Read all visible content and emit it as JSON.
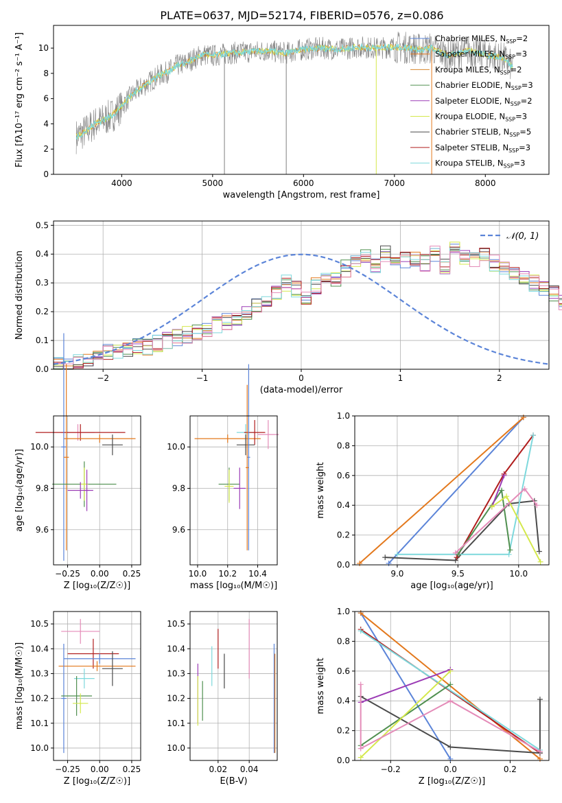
{
  "colors": {
    "c1": "#5b84d8",
    "c2": "#e3781c",
    "c3": "#d7852a",
    "c4": "#4f8f4f",
    "c5": "#9b3bb5",
    "c6": "#d4e84b",
    "c7": "#4a4a4a",
    "c8": "#b01d1d",
    "c9": "#7dd8dc",
    "gray": "#7f7f7f",
    "pink": "#e48bb8",
    "olive": "#a8c050",
    "grid": "#b0b0b0"
  },
  "legend_entries": [
    {
      "text": "Chabrier MILES, N",
      "sub": "SSP",
      "tail": "=2",
      "color": "#5b84d8"
    },
    {
      "text": "Salpeter MILES, N",
      "sub": "SSP",
      "tail": "=3",
      "color": "#e3781c"
    },
    {
      "text": "Kroupa MILES, N",
      "sub": "SSP",
      "tail": "=2",
      "color": "#d7852a"
    },
    {
      "text": "Chabrier ELODIE, N",
      "sub": "SSP",
      "tail": "=3",
      "color": "#4f8f4f"
    },
    {
      "text": "Salpeter ELODIE, N",
      "sub": "SSP",
      "tail": "=2",
      "color": "#9b3bb5"
    },
    {
      "text": "Kroupa ELODIE, N",
      "sub": "SSP",
      "tail": "=3",
      "color": "#d4e84b"
    },
    {
      "text": "Chabrier STELIB, N",
      "sub": "SSP",
      "tail": "=5",
      "color": "#4a4a4a"
    },
    {
      "text": "Salpeter STELIB, N",
      "sub": "SSP",
      "tail": "=3",
      "color": "#b01d1d"
    },
    {
      "text": "Kroupa STELIB, N",
      "sub": "SSP",
      "tail": "=3",
      "color": "#7dd8dc"
    }
  ],
  "chart_data": [
    {
      "id": "spectrum",
      "type": "line",
      "title": "PLATE=0637, MJD=52174, FIBERID=0576, z=0.086",
      "xlabel": "wavelength [Angstrom, rest frame]",
      "ylabel": "Flux [fλ10⁻¹⁷ erg cm⁻² s⁻¹ A⁻¹]",
      "xlim": [
        3250,
        8700
      ],
      "ylim": [
        0,
        11.8
      ],
      "xticks": [
        "4000",
        "5000",
        "6000",
        "7000",
        "8000"
      ],
      "yticks": [
        "0",
        "2",
        "4",
        "6",
        "8",
        "10"
      ],
      "continuum_x": [
        3500,
        3600,
        3700,
        3800,
        3900,
        4000,
        4100,
        4200,
        4300,
        4400,
        4500,
        4600,
        4700,
        4800,
        4900,
        5000,
        5200,
        5400,
        5600,
        5800,
        6000,
        6200,
        6400,
        6600,
        6800,
        7000,
        7200,
        7300,
        7400,
        7600,
        7800,
        8000,
        8200,
        8300
      ],
      "continuum_y": [
        3.0,
        3.4,
        4.0,
        4.3,
        4.7,
        5.4,
        6.2,
        6.8,
        7.3,
        7.8,
        8.1,
        8.6,
        8.8,
        9.2,
        9.5,
        9.4,
        9.6,
        9.7,
        9.8,
        9.6,
        9.9,
        10.0,
        9.9,
        10.1,
        10.0,
        10.1,
        10.0,
        9.9,
        10.0,
        9.4,
        9.8,
        9.5,
        9.2,
        8.5
      ],
      "spikes_x": [
        5130,
        5810,
        6800,
        7410
      ],
      "spikes_y": [
        0,
        0,
        0,
        0
      ],
      "legend": "upper right"
    },
    {
      "id": "residuals",
      "type": "histogram",
      "xlabel": "(data-model)/error",
      "ylabel": "Normed distribution",
      "xlim": [
        -2.5,
        2.5
      ],
      "ylim": [
        0,
        0.515
      ],
      "xticks": [
        "−2",
        "−1",
        "0",
        "1",
        "2"
      ],
      "yticks": [
        "0.0",
        "0.1",
        "0.2",
        "0.3",
        "0.4",
        "0.5"
      ],
      "bin_width": 0.1,
      "series_mean": [
        0.015,
        0.025,
        0.03,
        0.04,
        0.05,
        0.06,
        0.065,
        0.07,
        0.08,
        0.075,
        0.09,
        0.1,
        0.11,
        0.12,
        0.125,
        0.14,
        0.155,
        0.165,
        0.18,
        0.2,
        0.225,
        0.245,
        0.26,
        0.3,
        0.28,
        0.25,
        0.29,
        0.33,
        0.31,
        0.35,
        0.38,
        0.4,
        0.36,
        0.4,
        0.39,
        0.38,
        0.38,
        0.37,
        0.4,
        0.36,
        0.43,
        0.39,
        0.38,
        0.4,
        0.37,
        0.35,
        0.33,
        0.32,
        0.3,
        0.28,
        0.26,
        0.23,
        0.22,
        0.19,
        0.18,
        0.17,
        0.15,
        0.14,
        0.12,
        0.11,
        0.1,
        0.09,
        0.08,
        0.07,
        0.065,
        0.06,
        0.05,
        0.05,
        0.045,
        0.04
      ],
      "gaussian_label": "𝒩(0, 1)",
      "legend": "upper right"
    },
    {
      "id": "age_vs_Z",
      "type": "errorbar",
      "xlabel": "Z [log₁₀(Z/Z☉)]",
      "ylabel": "age  [log₁₀(age/yr)]",
      "xlim": [
        -0.36,
        0.32
      ],
      "ylim": [
        9.43,
        10.15
      ],
      "xticks": [
        -0.25,
        0.0,
        0.25
      ],
      "xtick_labels": [
        "−0.25",
        "0.00",
        "0.25"
      ],
      "yticks": [
        9.6,
        9.8,
        10.0
      ],
      "ytick_labels": [
        "9.6",
        "9.8",
        "10.0"
      ],
      "points": [
        {
          "x": -0.17,
          "y": 10.07,
          "xerr": 0.13,
          "yerr": 0.04,
          "c": "#e48bb8"
        },
        {
          "x": -0.15,
          "y": 10.07,
          "xerr": 0.35,
          "yerr": 0.04,
          "c": "#b01d1d"
        },
        {
          "x": 0.0,
          "y": 10.04,
          "xerr": 0.28,
          "yerr": 0.02,
          "c": "#e3781c"
        },
        {
          "x": 0.1,
          "y": 10.01,
          "xerr": 0.08,
          "yerr": 0.05,
          "c": "#4a4a4a"
        },
        {
          "x": -0.28,
          "y": 10.0,
          "xerr": 0.02,
          "yerr": 0.55,
          "c": "#5b84d8"
        },
        {
          "x": -0.26,
          "y": 9.95,
          "xerr": 0.02,
          "yerr": 0.45,
          "c": "#e3781c"
        },
        {
          "x": -0.12,
          "y": 9.82,
          "xerr": 0.25,
          "yerr": 0.11,
          "c": "#4f8f4f"
        },
        {
          "x": -0.12,
          "y": 9.82,
          "xerr": 0.03,
          "yerr": 0.08,
          "c": "#d4e84b"
        },
        {
          "x": -0.15,
          "y": 9.79,
          "xerr": 0.1,
          "yerr": 0.04,
          "c": "#9b3bb5"
        },
        {
          "x": -0.1,
          "y": 9.79,
          "xerr": 0.02,
          "yerr": 0.1,
          "c": "#9b3bb5"
        }
      ]
    },
    {
      "id": "age_vs_mass",
      "type": "errorbar",
      "xlabel": "mass [log₁₀(M/M☉)]",
      "ylabel": "",
      "xlim": [
        9.95,
        10.53
      ],
      "ylim": [
        9.43,
        10.15
      ],
      "xticks": [
        10.0,
        10.2,
        10.4
      ],
      "xtick_labels": [
        "10.0",
        "10.2",
        "10.4"
      ],
      "yticks": [
        9.6,
        9.8,
        10.0
      ],
      "ytick_labels": [
        "9.6",
        "9.8",
        "10.0"
      ],
      "points": [
        {
          "x": 10.2,
          "y": 10.04,
          "xerr": 0.22,
          "yerr": 0.02,
          "c": "#e3781c"
        },
        {
          "x": 10.32,
          "y": 10.07,
          "xerr": 0.06,
          "yerr": 0.04,
          "c": "#7dd8dc"
        },
        {
          "x": 10.38,
          "y": 10.07,
          "xerr": 0.07,
          "yerr": 0.06,
          "c": "#b01d1d"
        },
        {
          "x": 10.47,
          "y": 10.06,
          "xerr": 0.07,
          "yerr": 0.07,
          "c": "#e48bb8"
        },
        {
          "x": 10.32,
          "y": 10.01,
          "xerr": 0.06,
          "yerr": 0.05,
          "c": "#4a4a4a"
        },
        {
          "x": 10.34,
          "y": 9.95,
          "xerr": 0.01,
          "yerr": 0.45,
          "c": "#5b84d8"
        },
        {
          "x": 10.33,
          "y": 9.9,
          "xerr": 0.01,
          "yerr": 0.4,
          "c": "#e3781c"
        },
        {
          "x": 10.21,
          "y": 9.82,
          "xerr": 0.07,
          "yerr": 0.08,
          "c": "#4f8f4f"
        },
        {
          "x": 10.21,
          "y": 9.81,
          "xerr": 0.03,
          "yerr": 0.08,
          "c": "#d4e84b"
        },
        {
          "x": 10.28,
          "y": 9.8,
          "xerr": 0.04,
          "yerr": 0.1,
          "c": "#9b3bb5"
        }
      ]
    },
    {
      "id": "massweight_vs_age",
      "type": "line",
      "xlabel": "age  [log₁₀(age/yr)]",
      "ylabel": "mass weight",
      "xlim": [
        8.65,
        10.25
      ],
      "ylim": [
        0,
        1.0
      ],
      "xticks": [
        9.0,
        9.5,
        10.0
      ],
      "xtick_labels": [
        "9.0",
        "9.5",
        "10.0"
      ],
      "yticks": [
        0.0,
        0.2,
        0.4,
        0.6,
        0.8,
        1.0
      ],
      "ytick_labels": [
        "0.0",
        "0.2",
        "0.4",
        "0.6",
        "0.8",
        "1.0"
      ],
      "series": [
        {
          "c": "#5b84d8",
          "x": [
            8.93,
            10.04
          ],
          "y": [
            0.01,
            0.99
          ]
        },
        {
          "c": "#e3781c",
          "x": [
            8.69,
            10.04
          ],
          "y": [
            0.01,
            0.99
          ]
        },
        {
          "c": "#4a4a4a",
          "x": [
            8.9,
            9.48,
            9.92,
            10.13,
            10.17
          ],
          "y": [
            0.05,
            0.03,
            0.41,
            0.43,
            0.09
          ]
        },
        {
          "c": "#b01d1d",
          "x": [
            9.49,
            9.88,
            10.12
          ],
          "y": [
            0.05,
            0.61,
            0.87
          ]
        },
        {
          "c": "#7dd8dc",
          "x": [
            9.0,
            9.92,
            10.12
          ],
          "y": [
            0.07,
            0.07,
            0.87
          ]
        },
        {
          "c": "#4f8f4f",
          "x": [
            9.5,
            9.86,
            9.93
          ],
          "y": [
            0.07,
            0.5,
            0.1
          ]
        },
        {
          "c": "#9b3bb5",
          "x": [
            9.78,
            9.88
          ],
          "y": [
            0.39,
            0.6
          ]
        },
        {
          "c": "#d4e84b",
          "x": [
            9.78,
            9.9,
            10.18
          ],
          "y": [
            0.39,
            0.46,
            0.02
          ]
        },
        {
          "c": "#e48bb8",
          "x": [
            9.48,
            10.05,
            10.15
          ],
          "y": [
            0.08,
            0.51,
            0.4
          ]
        }
      ]
    },
    {
      "id": "mass_vs_Z",
      "type": "errorbar",
      "xlabel": "Z [log₁₀(Z/Z☉)]",
      "ylabel": "mass [log₁₀(M/M☉)]",
      "xlim": [
        -0.36,
        0.32
      ],
      "ylim": [
        9.95,
        10.55
      ],
      "xticks": [
        -0.25,
        0.0,
        0.25
      ],
      "xtick_labels": [
        "−0.25",
        "0.00",
        "0.25"
      ],
      "yticks": [
        10.0,
        10.1,
        10.2,
        10.3,
        10.4,
        10.5
      ],
      "ytick_labels": [
        "10.0",
        "10.1",
        "10.2",
        "10.3",
        "10.4",
        "10.5"
      ],
      "points": [
        {
          "x": -0.15,
          "y": 10.47,
          "xerr": 0.15,
          "yerr": 0.05,
          "c": "#e48bb8"
        },
        {
          "x": -0.05,
          "y": 10.38,
          "xerr": 0.2,
          "yerr": 0.06,
          "c": "#b01d1d"
        },
        {
          "x": 0.0,
          "y": 10.36,
          "xerr": 0.28,
          "yerr": 0.02,
          "c": "#5b84d8"
        },
        {
          "x": -0.02,
          "y": 10.33,
          "xerr": 0.3,
          "yerr": 0.02,
          "c": "#e3781c"
        },
        {
          "x": 0.1,
          "y": 10.32,
          "xerr": 0.08,
          "yerr": 0.07,
          "c": "#4a4a4a"
        },
        {
          "x": -0.12,
          "y": 10.28,
          "xerr": 0.08,
          "yerr": 0.04,
          "c": "#7dd8dc"
        },
        {
          "x": -0.28,
          "y": 10.2,
          "xerr": 0.02,
          "yerr": 0.22,
          "c": "#5b84d8"
        },
        {
          "x": -0.18,
          "y": 10.21,
          "xerr": 0.12,
          "yerr": 0.08,
          "c": "#4f8f4f"
        },
        {
          "x": -0.15,
          "y": 10.18,
          "xerr": 0.06,
          "yerr": 0.04,
          "c": "#d4e84b"
        }
      ]
    },
    {
      "id": "mass_vs_ebv",
      "type": "errorbar",
      "xlabel": "E(B-V)",
      "ylabel": "",
      "xlim": [
        0.002,
        0.058
      ],
      "ylim": [
        9.95,
        10.55
      ],
      "xticks": [
        0.02,
        0.04
      ],
      "xtick_labels": [
        "0.02",
        "0.04"
      ],
      "yticks": [
        10.0,
        10.1,
        10.2,
        10.3,
        10.4,
        10.5
      ],
      "ytick_labels": [
        "10.0",
        "10.1",
        "10.2",
        "10.3",
        "10.4",
        "10.5"
      ],
      "points": [
        {
          "x": 0.007,
          "y": 10.22,
          "xerr": 0.0,
          "yerr": 0.12,
          "c": "#9b3bb5"
        },
        {
          "x": 0.007,
          "y": 10.19,
          "xerr": 0.0,
          "yerr": 0.1,
          "c": "#d4e84b"
        },
        {
          "x": 0.01,
          "y": 10.19,
          "xerr": 0.0,
          "yerr": 0.08,
          "c": "#4f8f4f"
        },
        {
          "x": 0.016,
          "y": 10.33,
          "xerr": 0.0,
          "yerr": 0.08,
          "c": "#7dd8dc"
        },
        {
          "x": 0.02,
          "y": 10.4,
          "xerr": 0.0,
          "yerr": 0.08,
          "c": "#b01d1d"
        },
        {
          "x": 0.024,
          "y": 10.31,
          "xerr": 0.0,
          "yerr": 0.07,
          "c": "#4a4a4a"
        },
        {
          "x": 0.04,
          "y": 10.4,
          "xerr": 0.0,
          "yerr": 0.12,
          "c": "#e48bb8"
        },
        {
          "x": 0.056,
          "y": 10.2,
          "xerr": 0.0,
          "yerr": 0.22,
          "c": "#5b84d8"
        },
        {
          "x": 0.0565,
          "y": 10.18,
          "xerr": 0.0,
          "yerr": 0.2,
          "c": "#e3781c"
        }
      ]
    },
    {
      "id": "massweight_vs_Z",
      "type": "line",
      "xlabel": "Z [log₁₀(Z/Z☉)]",
      "ylabel": "mass weight",
      "xlim": [
        -0.32,
        0.33
      ],
      "ylim": [
        0,
        1.0
      ],
      "xticks": [
        -0.2,
        0.0,
        0.2
      ],
      "xtick_labels": [
        "−0.2",
        "0.0",
        "0.2"
      ],
      "yticks": [
        0.0,
        0.2,
        0.4,
        0.6,
        0.8,
        1.0
      ],
      "ytick_labels": [
        "0.0",
        "0.2",
        "0.4",
        "0.6",
        "0.8",
        "1.0"
      ],
      "series": [
        {
          "c": "#5b84d8",
          "x": [
            -0.3,
            0.0
          ],
          "y": [
            0.99,
            0.01
          ]
        },
        {
          "c": "#e3781c",
          "x": [
            -0.3,
            0.3
          ],
          "y": [
            0.99,
            0.01
          ]
        },
        {
          "c": "#b01d1d",
          "x": [
            -0.3,
            0.3
          ],
          "y": [
            0.88,
            0.05
          ]
        },
        {
          "c": "#7dd8dc",
          "x": [
            -0.3,
            0.3
          ],
          "y": [
            0.87,
            0.07
          ]
        },
        {
          "c": "#4a4a4a",
          "x": [
            -0.3,
            0.0,
            0.3,
            0.3
          ],
          "y": [
            0.43,
            0.09,
            0.05,
            0.41
          ]
        },
        {
          "c": "#9b3bb5",
          "x": [
            -0.3,
            0.0
          ],
          "y": [
            0.39,
            0.61
          ]
        },
        {
          "c": "#4f8f4f",
          "x": [
            -0.3,
            0.0
          ],
          "y": [
            0.1,
            0.51
          ]
        },
        {
          "c": "#d4e84b",
          "x": [
            -0.3,
            0.0
          ],
          "y": [
            0.02,
            0.6
          ]
        },
        {
          "c": "#e48bb8",
          "x": [
            -0.3,
            -0.3,
            0.0,
            0.3
          ],
          "y": [
            0.51,
            0.08,
            0.4,
            0.06
          ]
        }
      ]
    }
  ]
}
